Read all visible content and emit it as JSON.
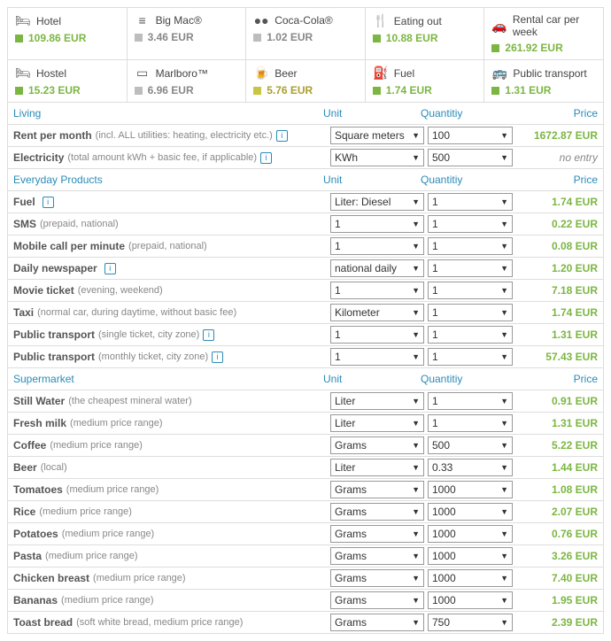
{
  "colors": {
    "highlight": "#7bb642",
    "muted": "#bdbdbd",
    "yellow": "#c9c543",
    "link": "#2a8bb8"
  },
  "cards": [
    {
      "icon": "🛏",
      "label": "Hotel",
      "sq": "#7bb642",
      "value": "109.86 EUR",
      "vcolor": "#7bb642"
    },
    {
      "icon": "≡",
      "label": "Big Mac®",
      "sq": "#bdbdbd",
      "value": "3.46 EUR",
      "vcolor": "#888"
    },
    {
      "icon": "●●",
      "label": "Coca-Cola®",
      "sq": "#bdbdbd",
      "value": "1.02 EUR",
      "vcolor": "#888"
    },
    {
      "icon": "🍴",
      "label": "Eating out",
      "sq": "#7bb642",
      "value": "10.88 EUR",
      "vcolor": "#7bb642"
    },
    {
      "icon": "🚗",
      "label": "Rental car per week",
      "sq": "#7bb642",
      "value": "261.92 EUR",
      "vcolor": "#7bb642"
    },
    {
      "icon": "🛏",
      "label": "Hostel",
      "sq": "#7bb642",
      "value": "15.23 EUR",
      "vcolor": "#7bb642"
    },
    {
      "icon": "▭",
      "label": "Marlboro™",
      "sq": "#bdbdbd",
      "value": "6.96 EUR",
      "vcolor": "#888"
    },
    {
      "icon": "🍺",
      "label": "Beer",
      "sq": "#c9c543",
      "value": "5.76 EUR",
      "vcolor": "#a99f2e"
    },
    {
      "icon": "⛽",
      "label": "Fuel",
      "sq": "#7bb642",
      "value": "1.74 EUR",
      "vcolor": "#7bb642"
    },
    {
      "icon": "🚌",
      "label": "Public transport",
      "sq": "#7bb642",
      "value": "1.31 EUR",
      "vcolor": "#7bb642"
    }
  ],
  "headers": {
    "unit": "Unit",
    "qty": "Quantitiy",
    "price": "Price"
  },
  "sections": [
    {
      "title": "Living",
      "rows": [
        {
          "main": "Rent per month",
          "sub": "(incl. ALL utilities: heating, electricity etc.)",
          "info": true,
          "unit": "Square meters",
          "qty": "100",
          "price": "1672.87 EUR",
          "pcolor": "#7bb642"
        },
        {
          "main": "Electricity",
          "sub": "(total amount kWh + basic fee, if applicable)",
          "info": true,
          "unit": "KWh",
          "qty": "500",
          "price": "no entry",
          "noentry": true
        }
      ]
    },
    {
      "title": "Everyday Products",
      "rows": [
        {
          "main": "Fuel",
          "sub": "",
          "info": true,
          "unit": "Liter: Diesel",
          "qty": "1",
          "price": "1.74 EUR",
          "pcolor": "#7bb642"
        },
        {
          "main": "SMS",
          "sub": "(prepaid, national)",
          "info": false,
          "unit": "1",
          "qty": "1",
          "price": "0.22 EUR",
          "pcolor": "#7bb642"
        },
        {
          "main": "Mobile call per minute",
          "sub": "(prepaid, national)",
          "info": false,
          "unit": "1",
          "qty": "1",
          "price": "0.08 EUR",
          "pcolor": "#7bb642"
        },
        {
          "main": "Daily newspaper",
          "sub": "",
          "info": true,
          "unit": "national daily",
          "qty": "1",
          "price": "1.20 EUR",
          "pcolor": "#7bb642"
        },
        {
          "main": "Movie ticket",
          "sub": "(evening, weekend)",
          "info": false,
          "unit": "1",
          "qty": "1",
          "price": "7.18 EUR",
          "pcolor": "#7bb642"
        },
        {
          "main": "Taxi",
          "sub": "(normal car, during daytime, without basic fee)",
          "info": false,
          "unit": "Kilometer",
          "qty": "1",
          "price": "1.74 EUR",
          "pcolor": "#7bb642"
        },
        {
          "main": "Public transport",
          "sub": "(single ticket, city zone)",
          "info": true,
          "unit": "1",
          "qty": "1",
          "price": "1.31 EUR",
          "pcolor": "#7bb642"
        },
        {
          "main": "Public transport",
          "sub": "(monthly ticket, city zone)",
          "info": true,
          "unit": "1",
          "qty": "1",
          "price": "57.43 EUR",
          "pcolor": "#7bb642"
        }
      ]
    },
    {
      "title": "Supermarket",
      "rows": [
        {
          "main": "Still Water",
          "sub": "(the cheapest mineral water)",
          "info": false,
          "unit": "Liter",
          "qty": "1",
          "price": "0.91 EUR",
          "pcolor": "#7bb642"
        },
        {
          "main": "Fresh milk",
          "sub": "(medium price range)",
          "info": false,
          "unit": "Liter",
          "qty": "1",
          "price": "1.31 EUR",
          "pcolor": "#7bb642"
        },
        {
          "main": "Coffee",
          "sub": "(medium price range)",
          "info": false,
          "unit": "Grams",
          "qty": "500",
          "price": "5.22 EUR",
          "pcolor": "#7bb642"
        },
        {
          "main": "Beer",
          "sub": "(local)",
          "info": false,
          "unit": "Liter",
          "qty": "0.33",
          "price": "1.44 EUR",
          "pcolor": "#7bb642"
        },
        {
          "main": "Tomatoes",
          "sub": "(medium price range)",
          "info": false,
          "unit": "Grams",
          "qty": "1000",
          "price": "1.08 EUR",
          "pcolor": "#7bb642"
        },
        {
          "main": "Rice",
          "sub": "(medium price range)",
          "info": false,
          "unit": "Grams",
          "qty": "1000",
          "price": "2.07 EUR",
          "pcolor": "#7bb642"
        },
        {
          "main": "Potatoes",
          "sub": "(medium price range)",
          "info": false,
          "unit": "Grams",
          "qty": "1000",
          "price": "0.76 EUR",
          "pcolor": "#7bb642"
        },
        {
          "main": "Pasta",
          "sub": "(medium price range)",
          "info": false,
          "unit": "Grams",
          "qty": "1000",
          "price": "3.26 EUR",
          "pcolor": "#7bb642"
        },
        {
          "main": "Chicken breast",
          "sub": "(medium price range)",
          "info": false,
          "unit": "Grams",
          "qty": "1000",
          "price": "7.40 EUR",
          "pcolor": "#7bb642"
        },
        {
          "main": "Bananas",
          "sub": "(medium price range)",
          "info": false,
          "unit": "Grams",
          "qty": "1000",
          "price": "1.95 EUR",
          "pcolor": "#7bb642"
        },
        {
          "main": "Toast bread",
          "sub": "(soft white bread, medium price range)",
          "info": false,
          "unit": "Grams",
          "qty": "750",
          "price": "2.39 EUR",
          "pcolor": "#7bb642"
        }
      ]
    }
  ]
}
